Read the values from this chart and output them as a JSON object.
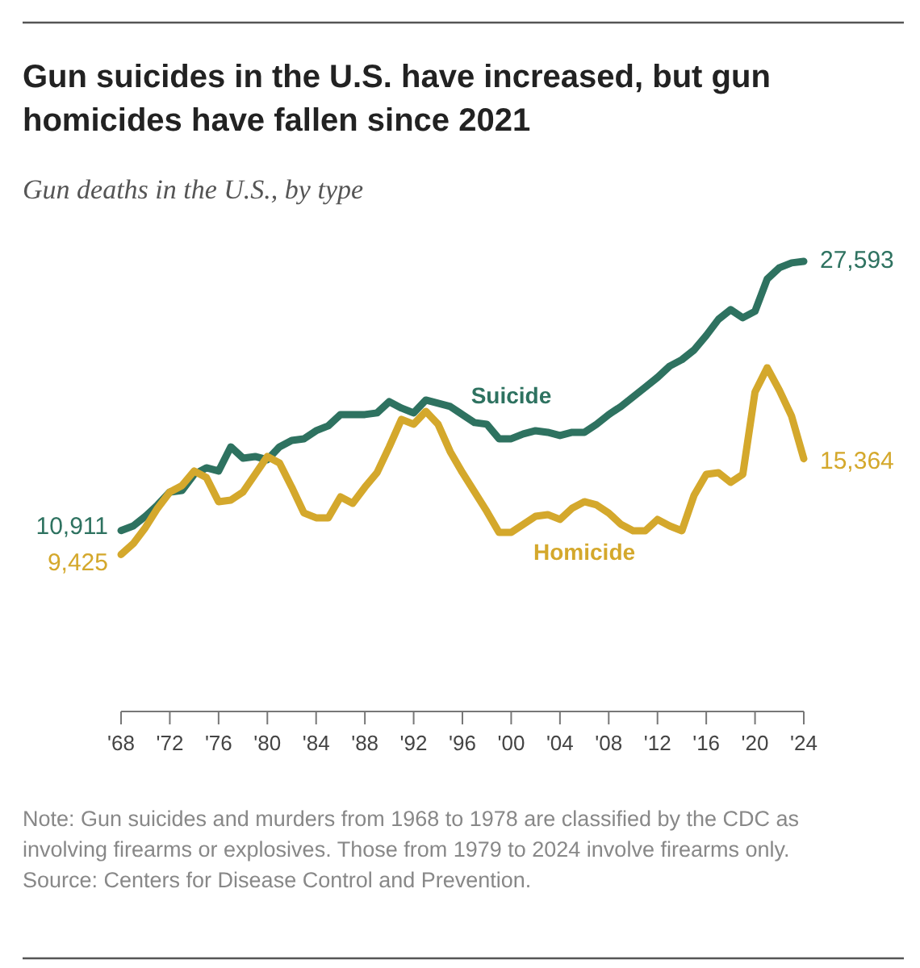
{
  "chart_data": {
    "type": "line",
    "title": "Gun suicides in the U.S. have increased, but gun homicides have fallen since 2021",
    "subtitle": "Gun deaths in the U.S., by type",
    "x": [
      1968,
      1969,
      1970,
      1971,
      1972,
      1973,
      1974,
      1975,
      1976,
      1977,
      1978,
      1979,
      1980,
      1981,
      1982,
      1983,
      1984,
      1985,
      1986,
      1987,
      1988,
      1989,
      1990,
      1991,
      1992,
      1993,
      1994,
      1995,
      1996,
      1997,
      1998,
      1999,
      2000,
      2001,
      2002,
      2003,
      2004,
      2005,
      2006,
      2007,
      2008,
      2009,
      2010,
      2011,
      2012,
      2013,
      2014,
      2015,
      2016,
      2017,
      2018,
      2019,
      2020,
      2021,
      2022,
      2023,
      2024
    ],
    "series": [
      {
        "name": "Suicide",
        "color": "#2e7260",
        "values": [
          10911,
          11200,
          11800,
          12500,
          13300,
          13400,
          14400,
          14800,
          14600,
          16100,
          15400,
          15500,
          15300,
          16100,
          16500,
          16600,
          17100,
          17400,
          18100,
          18100,
          18100,
          18200,
          18900,
          18500,
          18200,
          19000,
          18800,
          18600,
          18100,
          17600,
          17500,
          16600,
          16600,
          16900,
          17100,
          17000,
          16800,
          17000,
          17000,
          17500,
          18100,
          18600,
          19200,
          19800,
          20400,
          21100,
          21500,
          22100,
          23000,
          24000,
          24600,
          24100,
          24500,
          26500,
          27200,
          27500,
          27593
        ],
        "value_labels": [
          "10,911",
          null,
          null,
          null,
          null,
          null,
          null,
          null,
          null,
          null,
          null,
          null,
          null,
          null,
          null,
          null,
          null,
          null,
          null,
          null,
          null,
          null,
          null,
          null,
          null,
          null,
          null,
          null,
          null,
          null,
          null,
          null,
          null,
          null,
          null,
          null,
          null,
          null,
          null,
          null,
          null,
          null,
          null,
          null,
          null,
          null,
          null,
          null,
          null,
          null,
          null,
          null,
          null,
          null,
          null,
          null,
          "27,593"
        ]
      },
      {
        "name": "Homicide",
        "color": "#d4a82c",
        "values": [
          9425,
          10100,
          11100,
          12300,
          13300,
          13700,
          14600,
          14200,
          12700,
          12800,
          13300,
          14400,
          15500,
          15100,
          13600,
          12000,
          11700,
          11700,
          13000,
          12600,
          13600,
          14500,
          16100,
          17800,
          17500,
          18300,
          17500,
          15800,
          14500,
          13300,
          12100,
          10800,
          10800,
          11300,
          11800,
          11900,
          11600,
          12300,
          12700,
          12500,
          12000,
          11300,
          10900,
          10900,
          11600,
          11200,
          10900,
          13100,
          14400,
          14500,
          13900,
          14400,
          19500,
          21000,
          19600,
          18000,
          15364
        ],
        "value_labels": [
          "9,425",
          null,
          null,
          null,
          null,
          null,
          null,
          null,
          null,
          null,
          null,
          null,
          null,
          null,
          null,
          null,
          null,
          null,
          null,
          null,
          null,
          null,
          null,
          null,
          null,
          null,
          null,
          null,
          null,
          null,
          null,
          null,
          null,
          null,
          null,
          null,
          null,
          null,
          null,
          null,
          null,
          null,
          null,
          null,
          null,
          null,
          null,
          null,
          null,
          null,
          null,
          null,
          null,
          null,
          null,
          null,
          "15,364"
        ]
      }
    ],
    "xlim": [
      1968,
      2024
    ],
    "xticks": [
      {
        "value": 1968,
        "label": "'68"
      },
      {
        "value": 1972,
        "label": "'72"
      },
      {
        "value": 1976,
        "label": "'76"
      },
      {
        "value": 1980,
        "label": "'80"
      },
      {
        "value": 1984,
        "label": "'84"
      },
      {
        "value": 1988,
        "label": "'88"
      },
      {
        "value": 1992,
        "label": "'92"
      },
      {
        "value": 1996,
        "label": "'96"
      },
      {
        "value": 2000,
        "label": "'00"
      },
      {
        "value": 2004,
        "label": "'04"
      },
      {
        "value": 2008,
        "label": "'08"
      },
      {
        "value": 2012,
        "label": "'12"
      },
      {
        "value": 2016,
        "label": "'16"
      },
      {
        "value": 2020,
        "label": "'20"
      },
      {
        "value": 2024,
        "label": "'24"
      }
    ],
    "tick_labels": "x",
    "marker": "none",
    "line_style": "solid",
    "annotations": [
      "Note: Gun suicides and murders from 1968 to 1978 are classified by the CDC as involving firearms or explosives. Those from 1979 to 2024 involve firearms only.",
      "Source: Centers for Disease Control and Prevention."
    ]
  }
}
